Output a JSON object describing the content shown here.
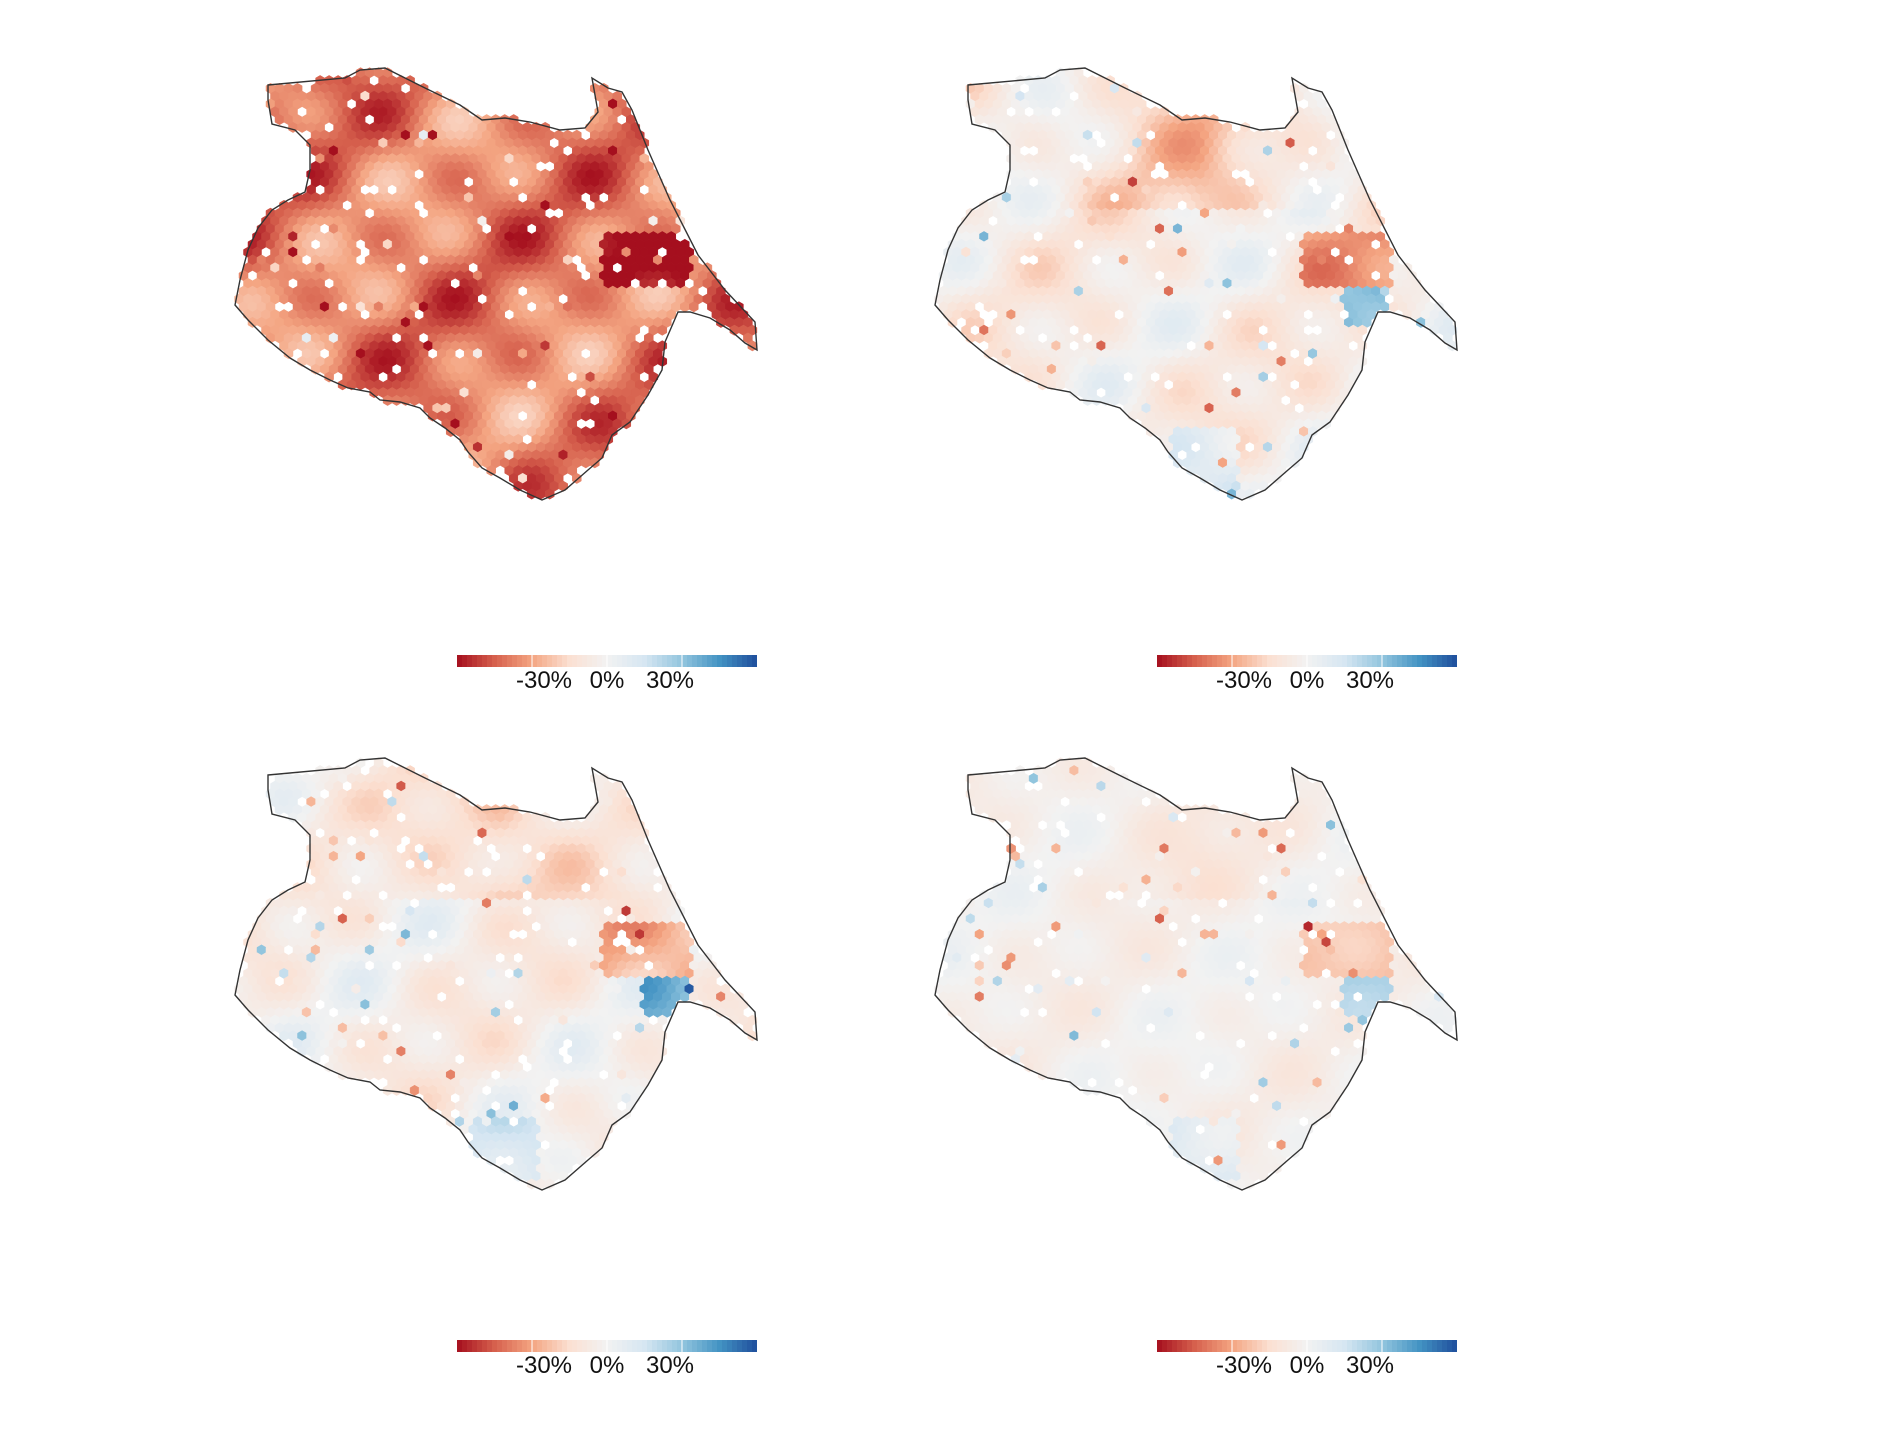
{
  "colors": {
    "scale": [
      "#a50f1e",
      "#d6604d",
      "#f4a582",
      "#fbe0d2",
      "#f2f2f2",
      "#d6e6f2",
      "#92c5de",
      "#4393c3",
      "#1f4e9c"
    ],
    "outline": "#333333",
    "background": "#ffffff"
  },
  "legend": {
    "ticks": [
      "-30%",
      "0%",
      "30%"
    ],
    "tick_values": [
      -0.3,
      0.0,
      0.3
    ],
    "range": [
      -0.6,
      0.6
    ]
  },
  "maps": [
    {
      "id": "top-left",
      "mean_change": -0.38,
      "spread": 0.22,
      "hotspot_red": 0.9,
      "hotspot_blue": 0.0,
      "north_blue": 0.0
    },
    {
      "id": "top-right",
      "mean_change": -0.06,
      "spread": 0.16,
      "hotspot_red": 0.7,
      "hotspot_blue": 0.7,
      "north_blue": 0.16
    },
    {
      "id": "bottom-left",
      "mean_change": -0.05,
      "spread": 0.15,
      "hotspot_red": 0.7,
      "hotspot_blue": 0.6,
      "north_blue": 0.16
    },
    {
      "id": "bottom-right",
      "mean_change": -0.03,
      "spread": 0.08,
      "hotspot_red": 0.5,
      "hotspot_blue": 0.5,
      "north_blue": 0.06
    }
  ]
}
